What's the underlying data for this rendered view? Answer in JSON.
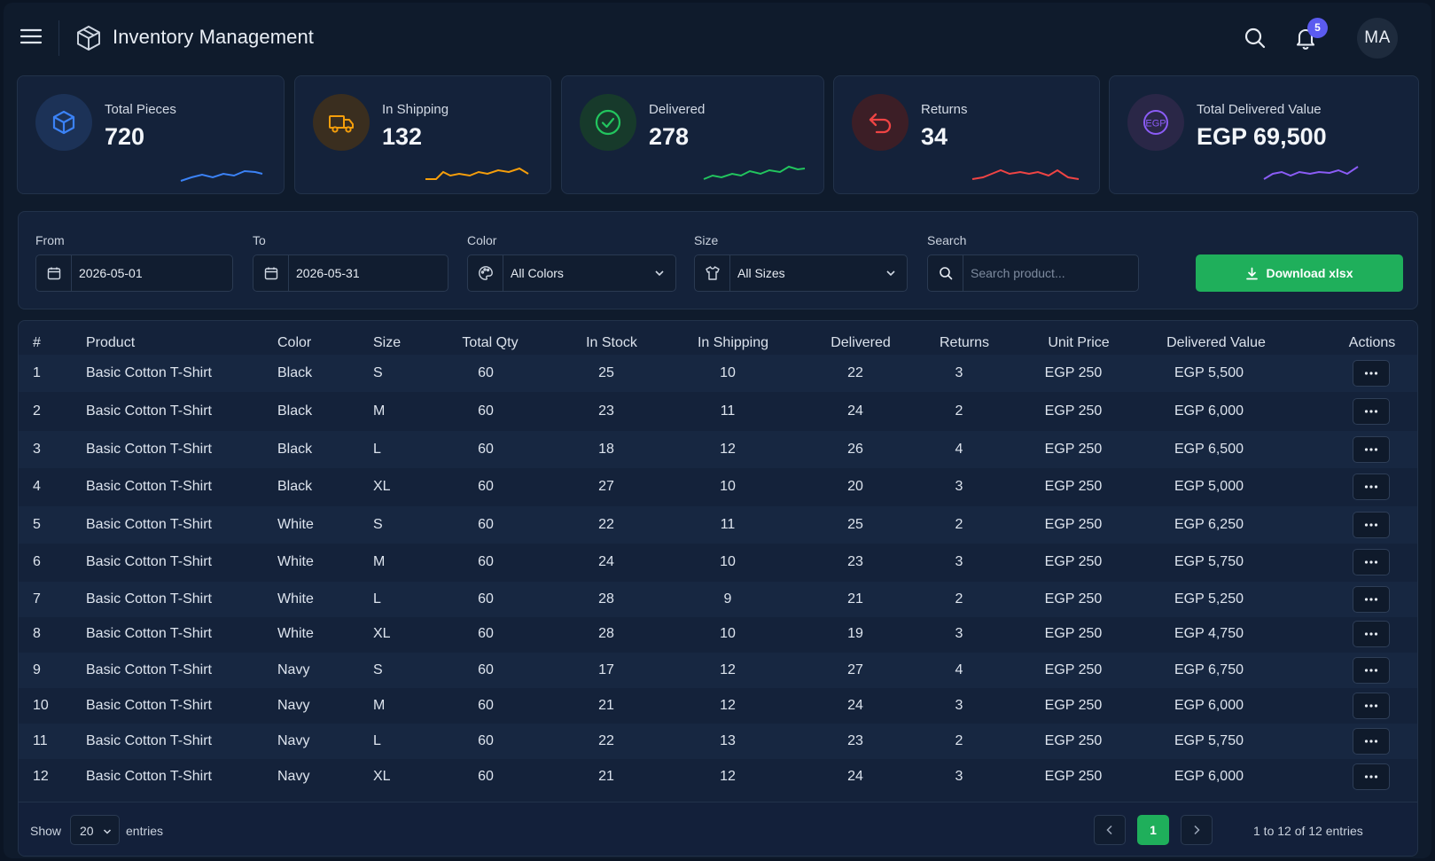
{
  "header": {
    "title": "Inventory Management",
    "notification_count": "5",
    "avatar_initials": "MA"
  },
  "stats": [
    {
      "label": "Total Pieces",
      "value": "720",
      "icon": "cube-icon",
      "color": "#3b82f6"
    },
    {
      "label": "In Shipping",
      "value": "132",
      "icon": "truck-icon",
      "color": "#f59e0b"
    },
    {
      "label": "Delivered",
      "value": "278",
      "icon": "check-circle-icon",
      "color": "#22c55e"
    },
    {
      "label": "Returns",
      "value": "34",
      "icon": "return-arrow-icon",
      "color": "#ef4444"
    },
    {
      "label": "Total Delivered Value",
      "value": "EGP 69,500",
      "icon": "egp-coin-icon",
      "icon_text": "EGP",
      "color": "#8b5cf6"
    }
  ],
  "filters": {
    "from_label": "From",
    "from_value": "2026-05-01",
    "to_label": "To",
    "to_value": "2026-05-31",
    "color_label": "Color",
    "color_value": "All Colors",
    "size_label": "Size",
    "size_value": "All Sizes",
    "search_label": "Search",
    "search_placeholder": "Search product...",
    "download_label": "Download xlsx"
  },
  "table": {
    "headers": [
      "#",
      "Product",
      "Color",
      "Size",
      "Total Qty",
      "In Stock",
      "In Shipping",
      "Delivered",
      "Returns",
      "Unit Price",
      "Delivered Value",
      "Actions"
    ],
    "rows": [
      [
        "1",
        "Basic Cotton T-Shirt",
        "Black",
        "S",
        "60",
        "25",
        "10",
        "22",
        "3",
        "EGP 250",
        "EGP 5,500"
      ],
      [
        "2",
        "Basic Cotton T-Shirt",
        "Black",
        "M",
        "60",
        "23",
        "11",
        "24",
        "2",
        "EGP 250",
        "EGP 6,000"
      ],
      [
        "3",
        "Basic Cotton T-Shirt",
        "Black",
        "L",
        "60",
        "18",
        "12",
        "26",
        "4",
        "EGP 250",
        "EGP 6,500"
      ],
      [
        "4",
        "Basic Cotton T-Shirt",
        "Black",
        "XL",
        "60",
        "27",
        "10",
        "20",
        "3",
        "EGP 250",
        "EGP 5,000"
      ],
      [
        "5",
        "Basic Cotton T-Shirt",
        "White",
        "S",
        "60",
        "22",
        "11",
        "25",
        "2",
        "EGP 250",
        "EGP 6,250"
      ],
      [
        "6",
        "Basic Cotton T-Shirt",
        "White",
        "M",
        "60",
        "24",
        "10",
        "23",
        "3",
        "EGP 250",
        "EGP 5,750"
      ],
      [
        "7",
        "Basic Cotton T-Shirt",
        "White",
        "L",
        "60",
        "28",
        "9",
        "21",
        "2",
        "EGP 250",
        "EGP 5,250"
      ],
      [
        "8",
        "Basic Cotton T-Shirt",
        "White",
        "XL",
        "60",
        "28",
        "10",
        "19",
        "3",
        "EGP 250",
        "EGP 4,750"
      ],
      [
        "9",
        "Basic Cotton T-Shirt",
        "Navy",
        "S",
        "60",
        "17",
        "12",
        "27",
        "4",
        "EGP 250",
        "EGP 6,750"
      ],
      [
        "10",
        "Basic Cotton T-Shirt",
        "Navy",
        "M",
        "60",
        "21",
        "12",
        "24",
        "3",
        "EGP 250",
        "EGP 6,000"
      ],
      [
        "11",
        "Basic Cotton T-Shirt",
        "Navy",
        "L",
        "60",
        "22",
        "13",
        "23",
        "2",
        "EGP 250",
        "EGP 5,750"
      ],
      [
        "12",
        "Basic Cotton T-Shirt",
        "Navy",
        "XL",
        "60",
        "21",
        "12",
        "24",
        "3",
        "EGP 250",
        "EGP 6,000"
      ]
    ]
  },
  "footer": {
    "show_label": "Show",
    "page_size": "20",
    "entries_label": "entries",
    "current_page": "1",
    "summary": "1 to 12 of 12 entries"
  },
  "colors": {
    "accent_green": "#1faf5b",
    "badge": "#5b5bf0",
    "row_alt": "#172741"
  }
}
